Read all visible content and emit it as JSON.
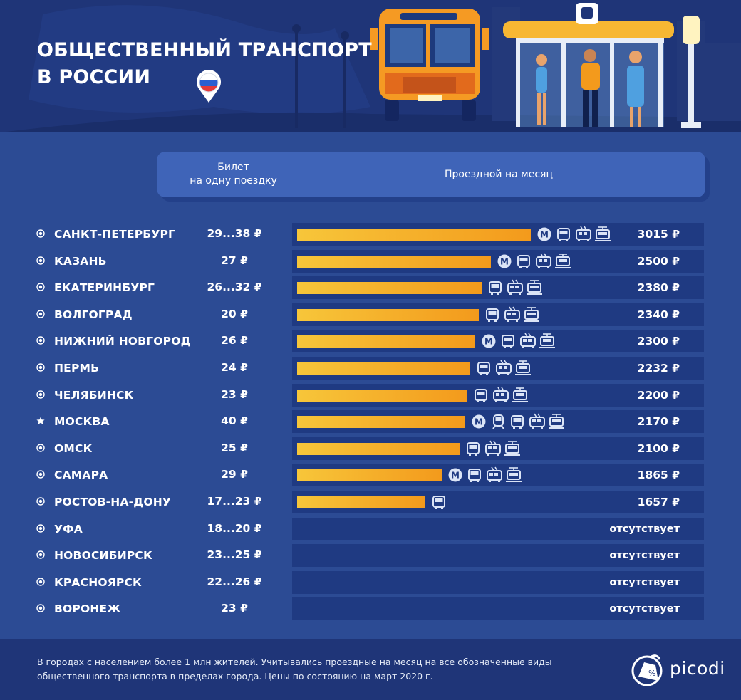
{
  "header": {
    "title_line1": "ОБЩЕСТВЕННЫЙ ТРАНСПОРТ",
    "title_line2": "В РОССИИ"
  },
  "columns": {
    "single_line1": "Билет",
    "single_line2": "на одну поездку",
    "monthly": "Проездной на месяц"
  },
  "colors": {
    "background": "#2c4b94",
    "bar_start": "#f7c63a",
    "bar_end": "#f39a1c",
    "track": "#1f3a82"
  },
  "chart_data": {
    "type": "bar",
    "orientation": "horizontal",
    "series_name": "Проездной на месяц",
    "rows": [
      {
        "city": "САНКТ-ПЕТЕРБУРГ",
        "marker": "circle",
        "ticket": "29...38 ₽",
        "monthly": 3015,
        "monthly_label": "3015 ₽",
        "transport": [
          "metro",
          "bus",
          "trolleybus",
          "tram"
        ]
      },
      {
        "city": "КАЗАНЬ",
        "marker": "circle",
        "ticket": "27 ₽",
        "monthly": 2500,
        "monthly_label": "2500 ₽",
        "transport": [
          "metro",
          "bus",
          "trolleybus",
          "tram"
        ]
      },
      {
        "city": "ЕКАТЕРИНБУРГ",
        "marker": "circle",
        "ticket": "26...32 ₽",
        "monthly": 2380,
        "monthly_label": "2380 ₽",
        "transport": [
          "bus",
          "trolleybus",
          "tram"
        ]
      },
      {
        "city": "ВОЛГОГРАД",
        "marker": "circle",
        "ticket": "20 ₽",
        "monthly": 2340,
        "monthly_label": "2340 ₽",
        "transport": [
          "bus",
          "trolleybus",
          "tram"
        ]
      },
      {
        "city": "НИЖНИЙ НОВГОРОД",
        "marker": "circle",
        "ticket": "26 ₽",
        "monthly": 2300,
        "monthly_label": "2300 ₽",
        "transport": [
          "metro",
          "bus",
          "trolleybus",
          "tram"
        ]
      },
      {
        "city": "ПЕРМЬ",
        "marker": "circle",
        "ticket": "24 ₽",
        "monthly": 2232,
        "monthly_label": "2232 ₽",
        "transport": [
          "bus",
          "trolleybus",
          "tram"
        ]
      },
      {
        "city": "ЧЕЛЯБИНСК",
        "marker": "circle",
        "ticket": "23 ₽",
        "monthly": 2200,
        "monthly_label": "2200 ₽",
        "transport": [
          "bus",
          "trolleybus",
          "tram"
        ]
      },
      {
        "city": "МОСКВА",
        "marker": "star",
        "ticket": "40 ₽",
        "monthly": 2170,
        "monthly_label": "2170 ₽",
        "transport": [
          "metro",
          "train",
          "bus",
          "trolleybus",
          "tram"
        ]
      },
      {
        "city": "ОМСК",
        "marker": "circle",
        "ticket": "25 ₽",
        "monthly": 2100,
        "monthly_label": "2100 ₽",
        "transport": [
          "bus",
          "trolleybus",
          "tram"
        ]
      },
      {
        "city": "САМАРА",
        "marker": "circle",
        "ticket": "29 ₽",
        "monthly": 1865,
        "monthly_label": "1865 ₽",
        "transport": [
          "metro",
          "bus",
          "trolleybus",
          "tram"
        ]
      },
      {
        "city": "РОСТОВ-НА-ДОНУ",
        "marker": "circle",
        "ticket": "17...23 ₽",
        "monthly": 1657,
        "monthly_label": "1657 ₽",
        "transport": [
          "bus"
        ]
      },
      {
        "city": "УФА",
        "marker": "circle",
        "ticket": "18...20 ₽",
        "monthly": null,
        "monthly_label": "отсутствует",
        "transport": []
      },
      {
        "city": "НОВОСИБИРСК",
        "marker": "circle",
        "ticket": "23...25 ₽",
        "monthly": null,
        "monthly_label": "отсутствует",
        "transport": []
      },
      {
        "city": "КРАСНОЯРСК",
        "marker": "circle",
        "ticket": "22...26 ₽",
        "monthly": null,
        "monthly_label": "отсутствует",
        "transport": []
      },
      {
        "city": "ВОРОНЕЖ",
        "marker": "circle",
        "ticket": "23 ₽",
        "monthly": null,
        "monthly_label": "отсутствует",
        "transport": []
      }
    ],
    "xlim": [
      0,
      3015
    ],
    "grid": false,
    "legend": "none"
  },
  "footer": {
    "note": "В городах с населением более 1 млн жителей. Учитывались проездные на месяц на все обозначенные виды общественного транспорта в пределах города. Цены по состоянию на март 2020 г.",
    "logo_text": "picodi"
  }
}
